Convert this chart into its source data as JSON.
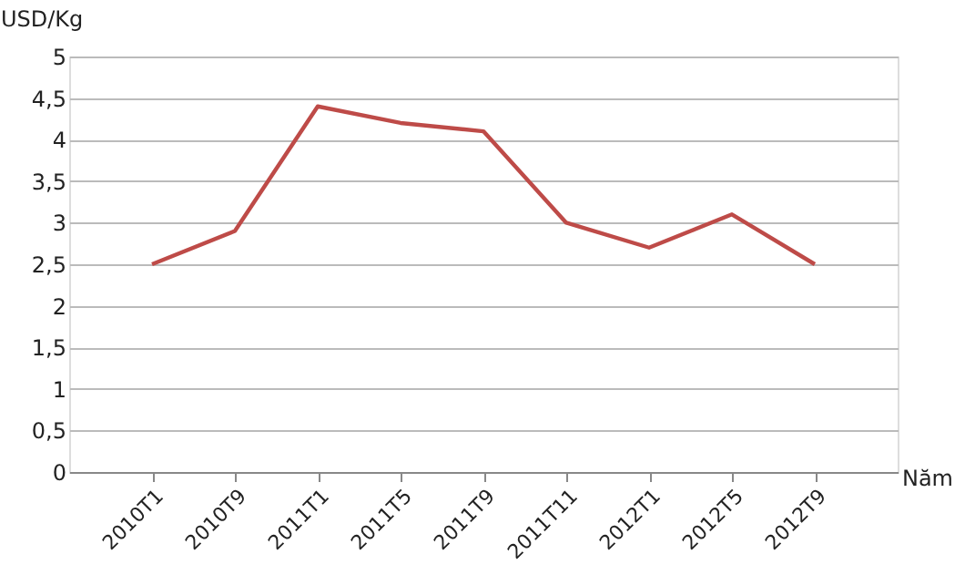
{
  "chart_data": {
    "type": "line",
    "ylabel": "USD/Kg",
    "xlabel": "Năm",
    "categories": [
      "2010T1",
      "2010T9",
      "2011T1",
      "2011T5",
      "2011T9",
      "2011T11",
      "2012T1",
      "2012T5",
      "2012T9"
    ],
    "series": [
      {
        "color": "#be4b48",
        "values": [
          2.5,
          2.9,
          4.4,
          4.2,
          4.1,
          3.0,
          2.7,
          3.1,
          2.5
        ]
      }
    ],
    "ylim": [
      0,
      5
    ],
    "yticks": [
      0,
      {
        "value": 0.5,
        "label": "0,5"
      },
      1,
      {
        "value": 1.5,
        "label": "1,5"
      },
      2,
      {
        "value": 2.5,
        "label": "2,5"
      },
      3,
      {
        "value": 3.5,
        "label": "3,5"
      },
      4,
      {
        "value": 4.5,
        "label": "4,5"
      },
      5
    ],
    "grid": "y",
    "marker": "none",
    "line_style": "solid"
  }
}
